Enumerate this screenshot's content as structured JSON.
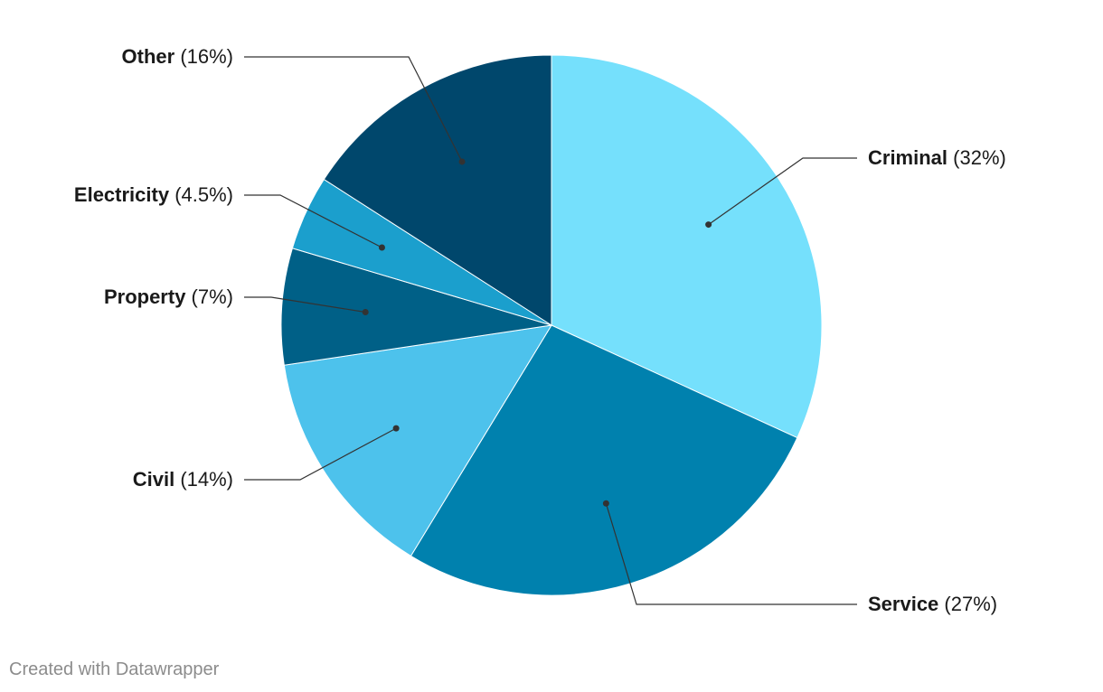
{
  "chart_data": {
    "type": "pie",
    "title": "",
    "slices": [
      {
        "name": "Criminal",
        "value": 32,
        "label": "(32%)",
        "color": "#75e0fc",
        "side": "right"
      },
      {
        "name": "Service",
        "value": 27,
        "label": "(27%)",
        "color": "#0081ae",
        "side": "right"
      },
      {
        "name": "Civil",
        "value": 14,
        "label": "(14%)",
        "color": "#4dc2ec",
        "side": "left"
      },
      {
        "name": "Property",
        "value": 7,
        "label": "(7%)",
        "color": "#006087",
        "side": "left"
      },
      {
        "name": "Electricity",
        "value": 4.5,
        "label": "(4.5%)",
        "color": "#1b9fcd",
        "side": "left"
      },
      {
        "name": "Other",
        "value": 16,
        "label": "(16%)",
        "color": "#00476c",
        "side": "left"
      }
    ],
    "start_angle_deg": 0,
    "direction": "clockwise",
    "legend": "none"
  },
  "credit": "Created with Datawrapper"
}
